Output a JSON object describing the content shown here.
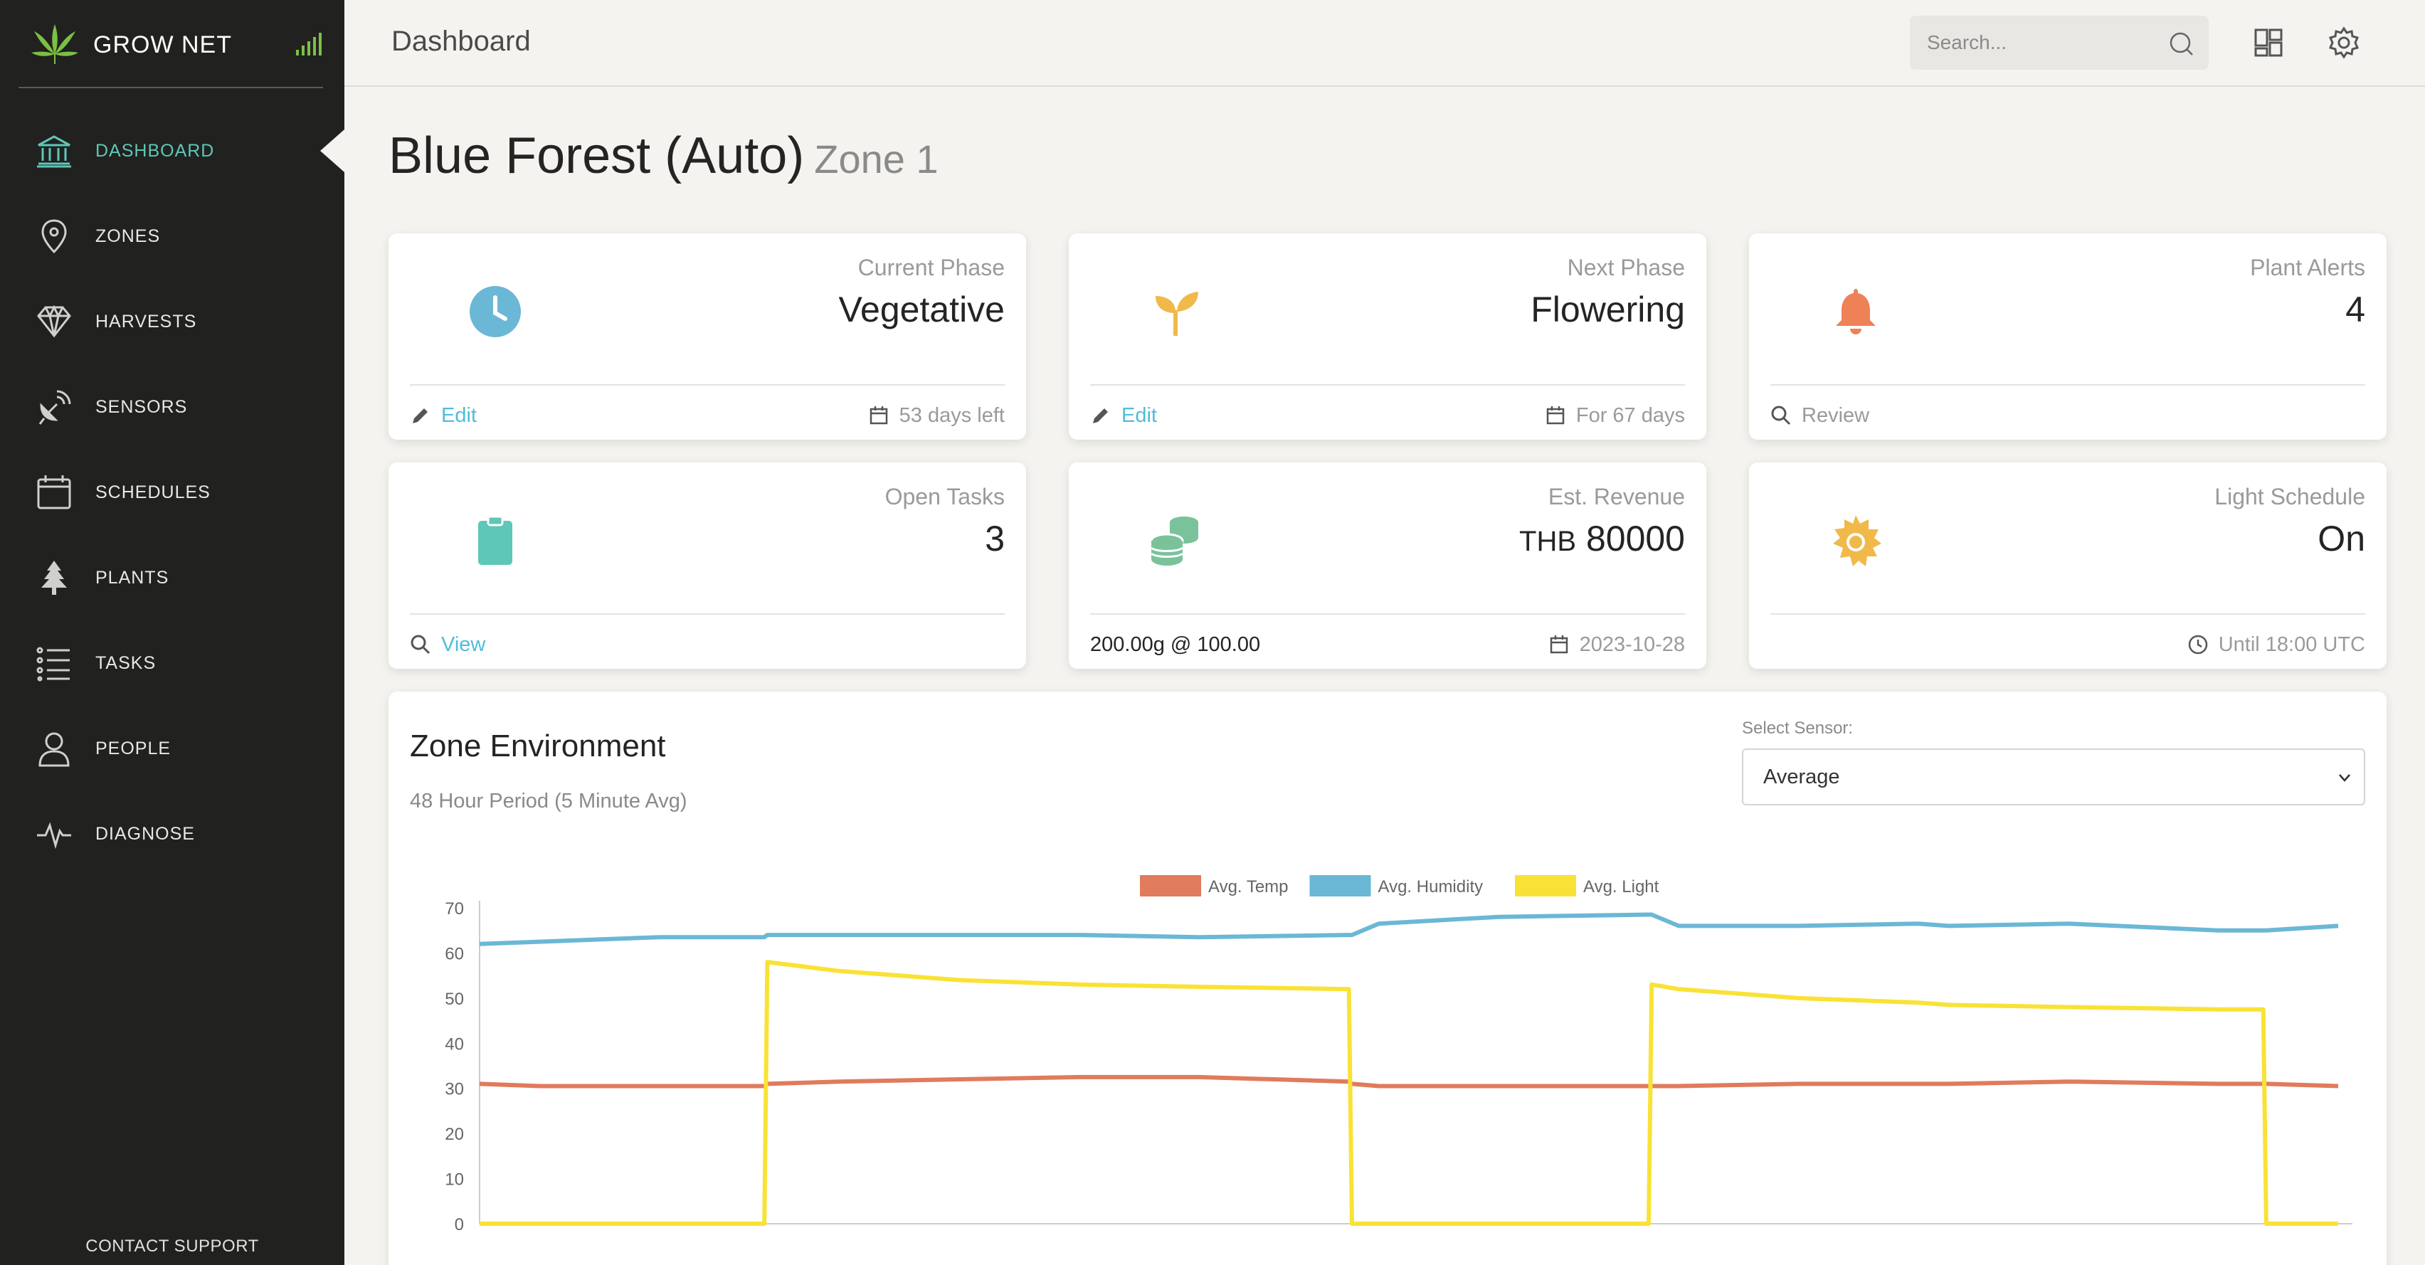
{
  "sidebar": {
    "brand": "GROW NET",
    "items": [
      {
        "label": "DASHBOARD",
        "icon": "bank-icon",
        "active": true
      },
      {
        "label": "ZONES",
        "icon": "map-pin-icon"
      },
      {
        "label": "HARVESTS",
        "icon": "diamond-icon"
      },
      {
        "label": "SENSORS",
        "icon": "satellite-dish-icon"
      },
      {
        "label": "SCHEDULES",
        "icon": "calendar-icon"
      },
      {
        "label": "PLANTS",
        "icon": "tree-icon"
      },
      {
        "label": "TASKS",
        "icon": "list-icon"
      },
      {
        "label": "PEOPLE",
        "icon": "person-icon"
      },
      {
        "label": "DIAGNOSE",
        "icon": "pulse-icon"
      }
    ],
    "contact": "CONTACT SUPPORT"
  },
  "topbar": {
    "title": "Dashboard",
    "search_placeholder": "Search..."
  },
  "heading": {
    "name": "Blue Forest (Auto)",
    "zone": "Zone 1"
  },
  "cards": {
    "current_phase": {
      "category": "Current Phase",
      "value": "Vegetative",
      "action": "Edit",
      "meta": "53 days left"
    },
    "next_phase": {
      "category": "Next Phase",
      "value": "Flowering",
      "action": "Edit",
      "meta": "For 67 days"
    },
    "plant_alerts": {
      "category": "Plant Alerts",
      "value": "4",
      "action": "Review"
    },
    "open_tasks": {
      "category": "Open Tasks",
      "value": "3",
      "action": "View"
    },
    "est_revenue": {
      "category": "Est. Revenue",
      "currency": "THB",
      "value": "80000",
      "detail": "200.00g @ 100.00",
      "meta": "2023-10-28"
    },
    "light_schedule": {
      "category": "Light Schedule",
      "value": "On",
      "meta": "Until 18:00 UTC"
    }
  },
  "colors": {
    "accent": "#5ec7b7",
    "link": "#51bcda",
    "temp": "#e07b5b",
    "humidity": "#6bb7d6",
    "light": "#f9e235",
    "alert": "#ef8157",
    "gold": "#f0b94a",
    "money": "#7ac29a"
  },
  "chart_section": {
    "title": "Zone Environment",
    "subtitle": "48 Hour Period (5 Minute Avg)",
    "select_label": "Select Sensor:",
    "select_value": "Average"
  },
  "chart_data": {
    "type": "line",
    "ylim": [
      0,
      70
    ],
    "yticks": [
      0,
      10,
      20,
      30,
      40,
      50,
      60,
      70
    ],
    "grid": false,
    "legend": "top",
    "x": [
      0,
      2,
      4,
      6,
      8,
      9.5,
      9.6,
      12,
      16,
      20,
      24,
      29,
      29.1,
      30,
      34,
      39,
      39.1,
      40,
      44,
      48,
      49,
      53,
      58,
      59.5,
      59.6,
      62
    ],
    "series": [
      {
        "name": "Avg. Temp",
        "color": "#e07b5b",
        "values": [
          31,
          30.5,
          30.5,
          30.5,
          30.5,
          30.5,
          31,
          31.5,
          32,
          32.5,
          32.5,
          31.5,
          31,
          30.5,
          30.5,
          30.5,
          30.5,
          30.5,
          31,
          31,
          31,
          31.5,
          31,
          31,
          31,
          30.5
        ]
      },
      {
        "name": "Avg. Humidity",
        "color": "#6bb7d6",
        "values": [
          62,
          62.5,
          63,
          63.5,
          63.5,
          63.5,
          64,
          64,
          64,
          64,
          63.5,
          64,
          64,
          66.5,
          68,
          68.5,
          68.5,
          66,
          66,
          66.5,
          66,
          66.5,
          65,
          65,
          65,
          66
        ]
      },
      {
        "name": "Avg. Light",
        "color": "#f9e235",
        "values": [
          0,
          0,
          0,
          0,
          0,
          0,
          58,
          56,
          54,
          53,
          52.5,
          52,
          0,
          0,
          0,
          0,
          53,
          52,
          50,
          49,
          48.5,
          48,
          47.5,
          47.5,
          0,
          0
        ]
      }
    ]
  }
}
